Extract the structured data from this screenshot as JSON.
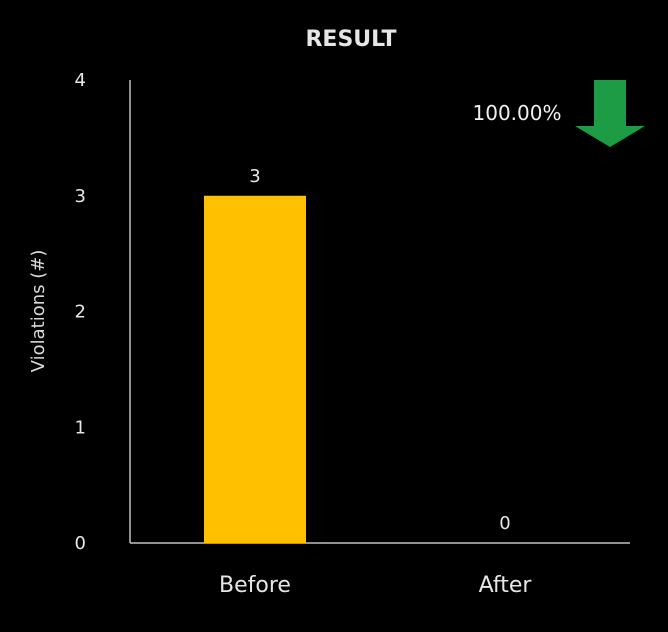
{
  "chart_data": {
    "type": "bar",
    "title": "RESULT",
    "ylabel": "Violations (#)",
    "xlabel": "",
    "categories": [
      "Before",
      "After"
    ],
    "values": [
      3,
      0
    ],
    "data_labels": [
      "3",
      "0"
    ],
    "ylim": [
      0,
      4
    ],
    "yticks": [
      "0",
      "1",
      "2",
      "3",
      "4"
    ],
    "grid": false,
    "legend": "none",
    "bar_color": "#FFC000",
    "annotation": {
      "text": "100.00%",
      "arrow_icon": "down-arrow-icon",
      "arrow_color": "#1E9C45"
    }
  }
}
